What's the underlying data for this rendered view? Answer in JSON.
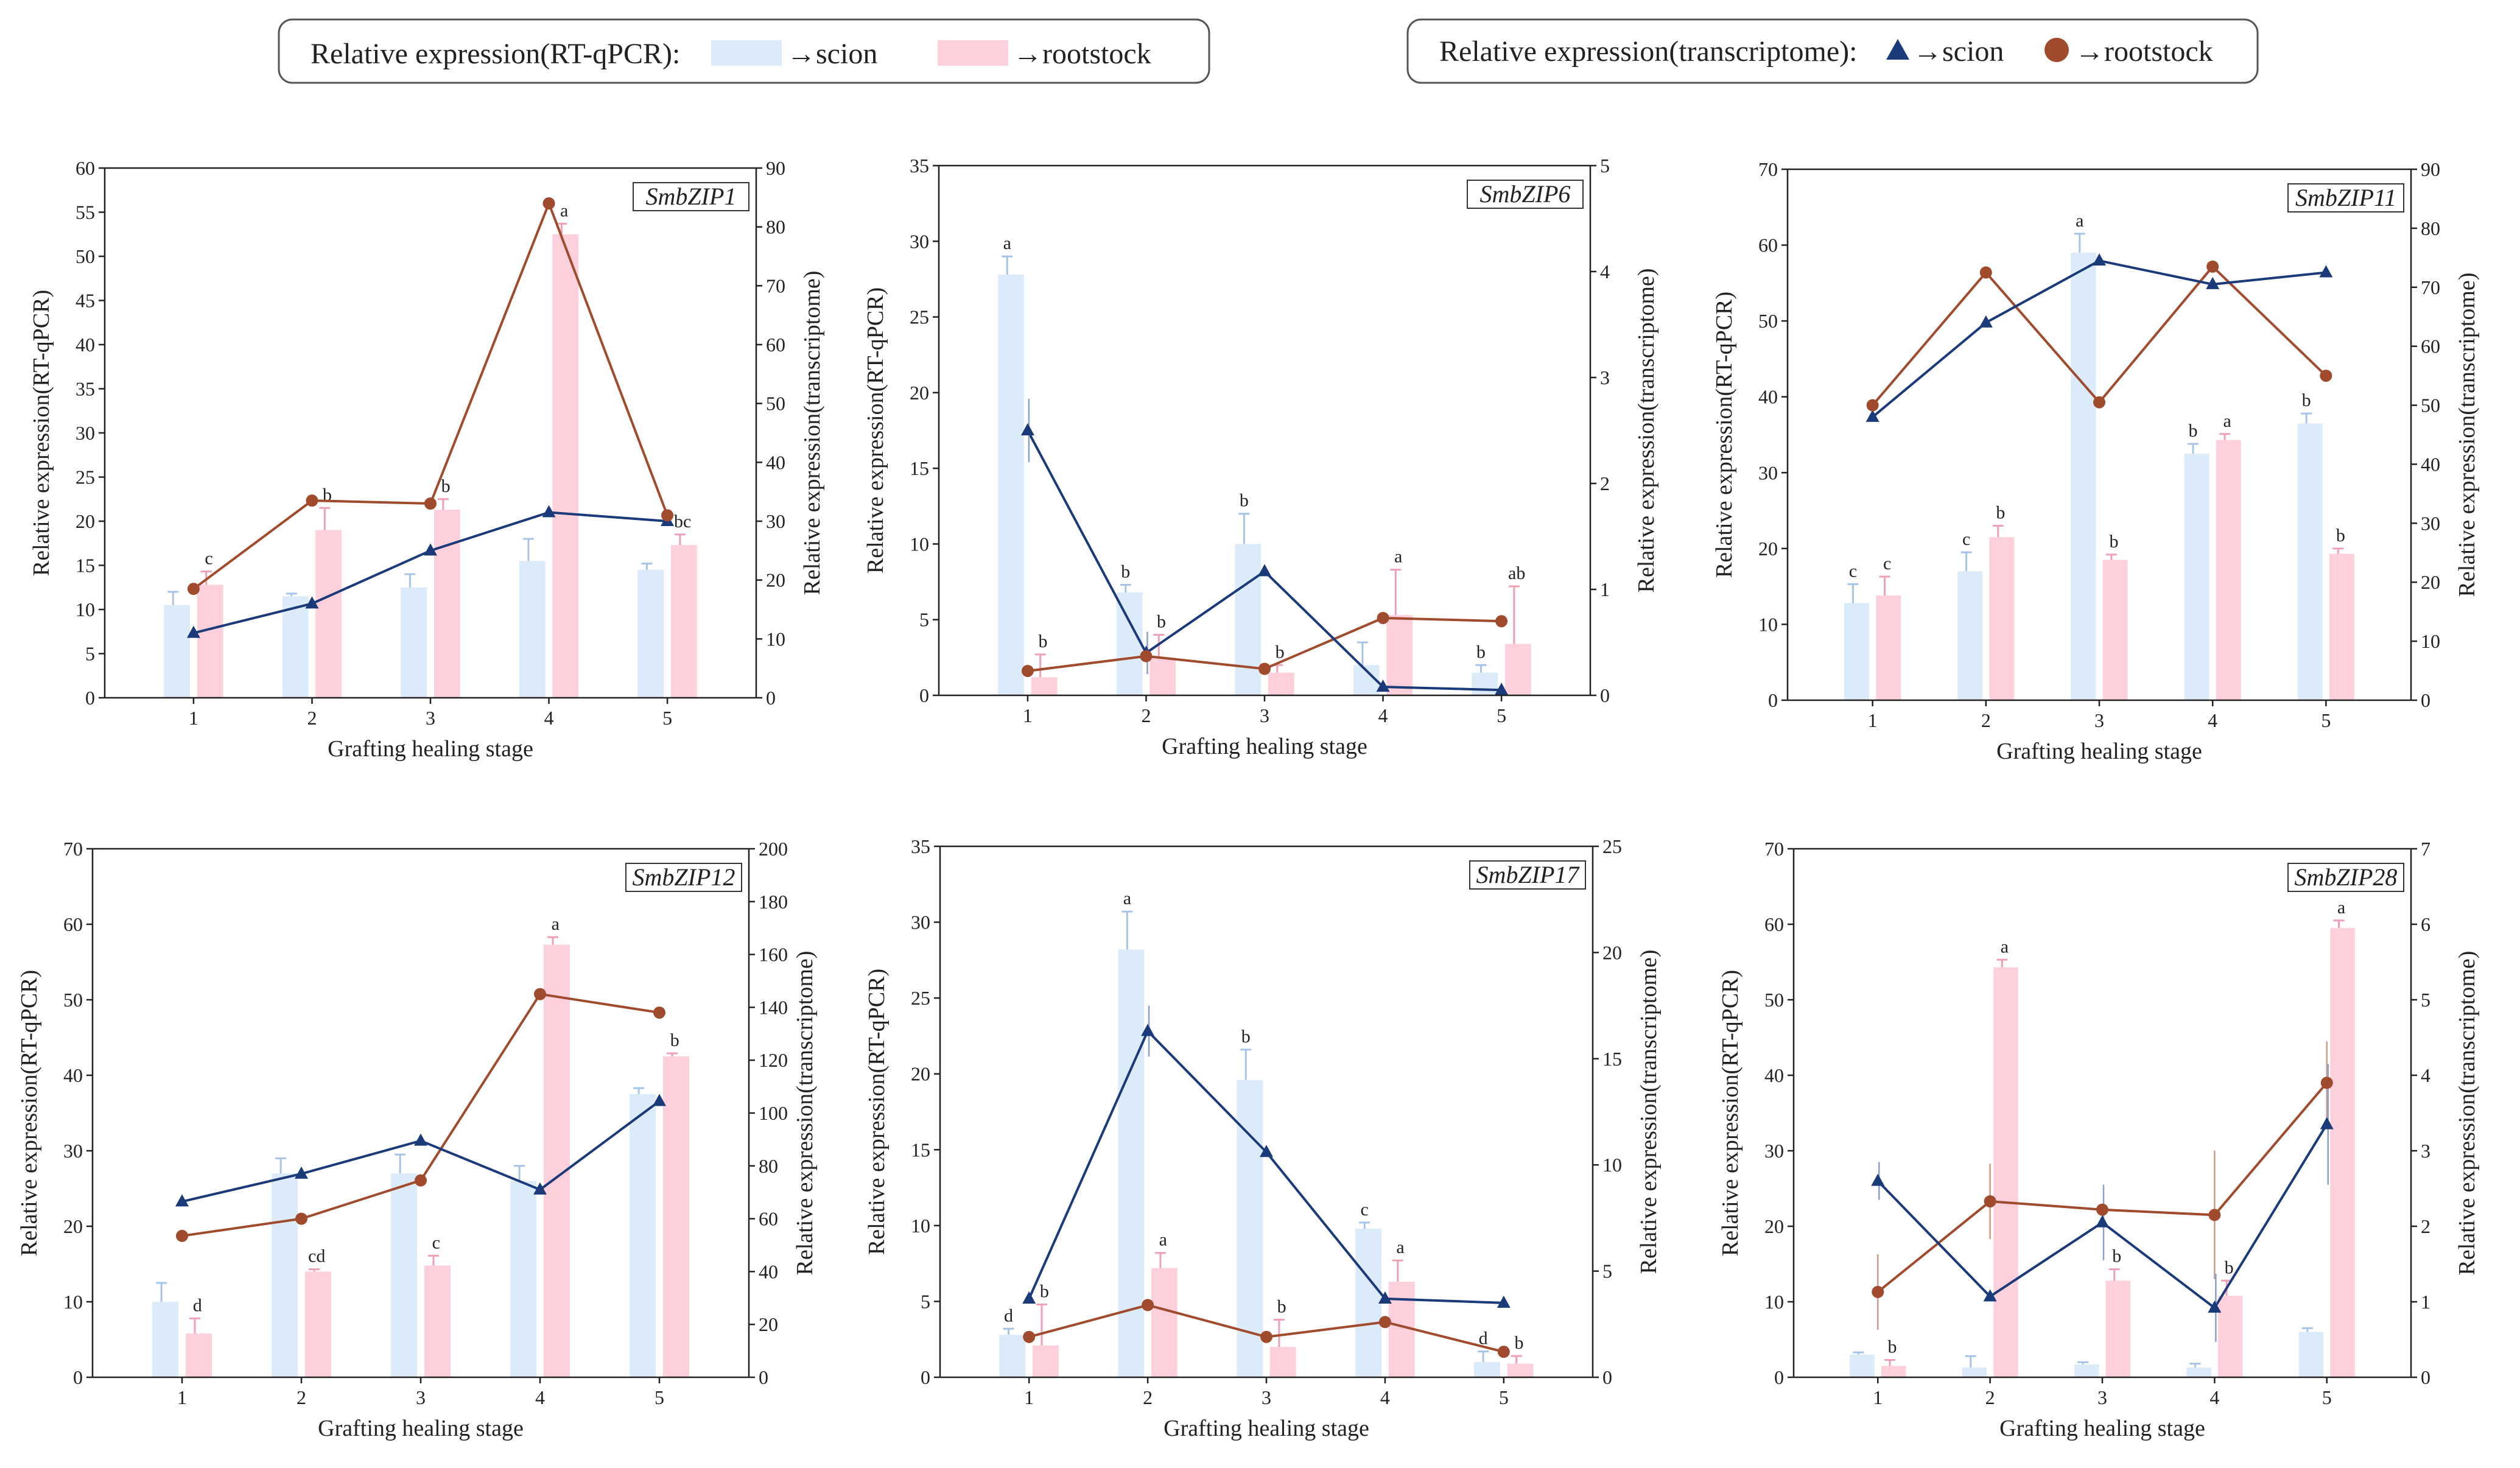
{
  "colors": {
    "bar_scion": "#dcebfa",
    "bar_rootstock": "#fdd0dc",
    "err_scion": "#a7c4e8",
    "err_rootstock": "#f0a0b4",
    "line_scion": "#1b3a7a",
    "line_rootstock": "#a04b2d",
    "axis": "#222222"
  },
  "legend": {
    "rt": {
      "title": "Relative expression(RT-qPCR):",
      "scion": "→scion",
      "rootstock": "→rootstock"
    },
    "tr": {
      "title": "Relative expression(transcriptome):",
      "scion": "→scion",
      "rootstock": "→rootstock"
    }
  },
  "chart_data": [
    {
      "type": "bar+line",
      "gene": "SmbZIP1",
      "xlabel": "Grafting healing stage",
      "ylabel_left": "Relative expression(RT-qPCR)",
      "ylabel_right": "Relative expression(transcriptome)",
      "categories": [
        "1",
        "2",
        "3",
        "4",
        "5"
      ],
      "ylim_left": [
        0,
        60
      ],
      "yticks_left": [
        0,
        5,
        10,
        15,
        20,
        25,
        30,
        35,
        40,
        45,
        50,
        55,
        60
      ],
      "ylim_right": [
        0,
        90
      ],
      "yticks_right": [
        0,
        10,
        20,
        30,
        40,
        50,
        60,
        70,
        80,
        90
      ],
      "bars_scion": [
        10.5,
        11.5,
        12.5,
        15.5,
        14.5
      ],
      "bars_scion_err": [
        1.5,
        0.3,
        1.5,
        2.5,
        0.7
      ],
      "bars_rootstock": [
        12.8,
        19.0,
        21.3,
        52.5,
        17.3
      ],
      "bars_rootstock_err": [
        1.5,
        2.5,
        1.2,
        1.2,
        1.2
      ],
      "sig_scion": [
        "",
        "",
        "",
        "",
        ""
      ],
      "sig_rootstock": [
        "c",
        "b",
        "b",
        "a",
        "bc"
      ],
      "line_scion": [
        11,
        16,
        25,
        31.5,
        30
      ],
      "line_rootstock": [
        18.5,
        33.5,
        33,
        84,
        31
      ],
      "line_scion_err": [
        0,
        0,
        0,
        0,
        0
      ],
      "line_rootstock_err": [
        0,
        0,
        0,
        0,
        0
      ]
    },
    {
      "type": "bar+line",
      "gene": "SmbZIP6",
      "xlabel": "Grafting healing stage",
      "ylabel_left": "Relative expression(RT-qPCR)",
      "ylabel_right": "Relative expression(transcriptome)",
      "categories": [
        "1",
        "2",
        "3",
        "4",
        "5"
      ],
      "ylim_left": [
        0,
        35
      ],
      "yticks_left": [
        0,
        5,
        10,
        15,
        20,
        25,
        30,
        35
      ],
      "ylim_right": [
        0,
        5
      ],
      "yticks_right": [
        0,
        1,
        2,
        3,
        4,
        5
      ],
      "bars_scion": [
        27.8,
        6.8,
        10,
        2,
        1.5
      ],
      "bars_scion_err": [
        1.2,
        0.5,
        2,
        1.5,
        0.5
      ],
      "bars_rootstock": [
        1.2,
        2.5,
        1.5,
        5.3,
        3.4
      ],
      "bars_rootstock_err": [
        1.5,
        1.5,
        0.5,
        3,
        3.8
      ],
      "sig_scion": [
        "a",
        "b",
        "b",
        "",
        "b"
      ],
      "sig_rootstock": [
        "b",
        "b",
        "b",
        "a",
        "ab"
      ],
      "line_scion": [
        2.5,
        0.4,
        1.17,
        0.08,
        0.05
      ],
      "line_rootstock": [
        0.23,
        0.37,
        0.25,
        0.73,
        0.7
      ],
      "line_scion_err": [
        0.3,
        0.2,
        0,
        0,
        0
      ],
      "line_rootstock_err": [
        0,
        0,
        0,
        0,
        0
      ]
    },
    {
      "type": "bar+line",
      "gene": "SmbZIP11",
      "xlabel": "Grafting healing stage",
      "ylabel_left": "Relative expression(RT-qPCR)",
      "ylabel_right": "Relative expression(transcriptome)",
      "categories": [
        "1",
        "2",
        "3",
        "4",
        "5"
      ],
      "ylim_left": [
        0,
        70
      ],
      "yticks_left": [
        0,
        10,
        20,
        30,
        40,
        50,
        60,
        70
      ],
      "ylim_right": [
        0,
        90
      ],
      "yticks_right": [
        0,
        10,
        20,
        30,
        40,
        50,
        60,
        70,
        80,
        90
      ],
      "bars_scion": [
        12.8,
        17,
        59,
        32.5,
        36.5
      ],
      "bars_scion_err": [
        2.5,
        2.5,
        2.5,
        1.3,
        1.3
      ],
      "bars_rootstock": [
        13.8,
        21.5,
        18.5,
        34.3,
        19.3
      ],
      "bars_rootstock_err": [
        2.5,
        1.5,
        0.7,
        0.8,
        0.7
      ],
      "sig_scion": [
        "c",
        "c",
        "a",
        "b",
        "b"
      ],
      "sig_rootstock": [
        "c",
        "b",
        "b",
        "a",
        "b"
      ],
      "line_scion": [
        48,
        64,
        74.5,
        70.5,
        72.5
      ],
      "line_rootstock": [
        50,
        72.5,
        50.5,
        73.5,
        55
      ],
      "line_scion_err": [
        0,
        0,
        0,
        0,
        0
      ],
      "line_rootstock_err": [
        0,
        0,
        0,
        0,
        0
      ]
    },
    {
      "type": "bar+line",
      "gene": "SmbZIP12",
      "xlabel": "Grafting healing stage",
      "ylabel_left": "Relative expression(RT-qPCR)",
      "ylabel_right": "Relative expression(transcriptome)",
      "categories": [
        "1",
        "2",
        "3",
        "4",
        "5"
      ],
      "ylim_left": [
        0,
        70
      ],
      "yticks_left": [
        0,
        10,
        20,
        30,
        40,
        50,
        60,
        70
      ],
      "ylim_right": [
        0,
        200
      ],
      "yticks_right": [
        0,
        20,
        40,
        60,
        80,
        100,
        120,
        140,
        160,
        180,
        200
      ],
      "bars_scion": [
        10,
        27,
        27,
        26,
        37.5
      ],
      "bars_scion_err": [
        2.5,
        2,
        2.5,
        2,
        0.8
      ],
      "bars_rootstock": [
        5.8,
        14,
        14.8,
        57.3,
        42.5
      ],
      "bars_rootstock_err": [
        2,
        0.3,
        1.3,
        1,
        0.4
      ],
      "sig_scion": [
        "",
        "",
        "",
        "",
        ""
      ],
      "sig_rootstock": [
        "d",
        "cd",
        "c",
        "a",
        "b"
      ],
      "line_scion": [
        66.5,
        77,
        89.5,
        71,
        104.5
      ],
      "line_rootstock": [
        53.5,
        60,
        74.5,
        145,
        138
      ],
      "line_scion_err": [
        0,
        0,
        0,
        0,
        0
      ],
      "line_rootstock_err": [
        0,
        0,
        0,
        0,
        0
      ]
    },
    {
      "type": "bar+line",
      "gene": "SmbZIP17",
      "xlabel": "Grafting healing stage",
      "ylabel_left": "Relative expression(RT-qPCR)",
      "ylabel_right": "Relative expression(transcriptome)",
      "categories": [
        "1",
        "2",
        "3",
        "4",
        "5"
      ],
      "ylim_left": [
        0,
        35
      ],
      "yticks_left": [
        0,
        5,
        10,
        15,
        20,
        25,
        30,
        35
      ],
      "ylim_right": [
        0,
        25
      ],
      "yticks_right": [
        0,
        5,
        10,
        15,
        20,
        25
      ],
      "bars_scion": [
        2.8,
        28.2,
        19.6,
        9.8,
        1
      ],
      "bars_scion_err": [
        0.4,
        2.5,
        2,
        0.4,
        0.7
      ],
      "bars_rootstock": [
        2.1,
        7.2,
        2,
        6.3,
        0.9
      ],
      "bars_rootstock_err": [
        2.7,
        1,
        1.8,
        1.4,
        0.5
      ],
      "sig_scion": [
        "d",
        "a",
        "b",
        "c",
        "d"
      ],
      "sig_rootstock": [
        "b",
        "a",
        "b",
        "a",
        "b"
      ],
      "line_scion": [
        3.7,
        16.3,
        10.6,
        3.7,
        3.5
      ],
      "line_rootstock": [
        1.9,
        3.4,
        1.9,
        2.6,
        1.2
      ],
      "line_scion_err": [
        0,
        1.2,
        0,
        0,
        0
      ],
      "line_rootstock_err": [
        0,
        0,
        0,
        0,
        0
      ]
    },
    {
      "type": "bar+line",
      "gene": "SmbZIP28",
      "xlabel": "Grafting healing stage",
      "ylabel_left": "Relative expression(RT-qPCR)",
      "ylabel_right": "Relative expression(transcriptome)",
      "categories": [
        "1",
        "2",
        "3",
        "4",
        "5"
      ],
      "ylim_left": [
        0,
        70
      ],
      "yticks_left": [
        0,
        10,
        20,
        30,
        40,
        50,
        60,
        70
      ],
      "ylim_right": [
        0,
        7
      ],
      "yticks_right": [
        0,
        1,
        2,
        3,
        4,
        5,
        6,
        7
      ],
      "bars_scion": [
        3,
        1.3,
        1.7,
        1.3,
        6
      ],
      "bars_scion_err": [
        0.3,
        1.5,
        0.3,
        0.5,
        0.5
      ],
      "bars_rootstock": [
        1.5,
        54.3,
        12.8,
        10.8,
        59.5
      ],
      "bars_rootstock_err": [
        0.8,
        1,
        1.5,
        2,
        1
      ],
      "sig_scion": [
        "",
        "",
        "",
        "",
        ""
      ],
      "sig_rootstock": [
        "b",
        "a",
        "b",
        "b",
        "a"
      ],
      "line_scion": [
        2.6,
        1.07,
        2.05,
        0.92,
        3.35
      ],
      "line_rootstock": [
        1.13,
        2.33,
        2.22,
        2.15,
        3.9
      ],
      "line_scion_err": [
        0.25,
        0,
        0.5,
        0.45,
        0.8
      ],
      "line_rootstock_err": [
        0.5,
        0.5,
        0,
        0.85,
        0.55
      ]
    }
  ]
}
